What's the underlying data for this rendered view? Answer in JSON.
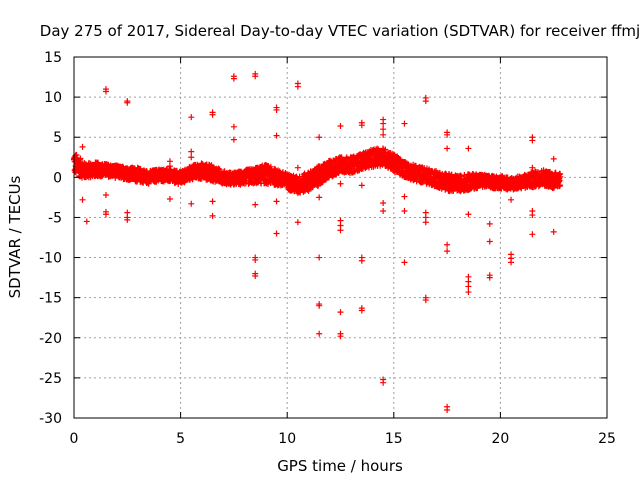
{
  "chart_data": {
    "type": "scatter",
    "title": "Day 275 of 2017, Sidereal Day-to-day VTEC variation (SDTVAR) for receiver ffmj",
    "xlabel": "GPS time / hours",
    "ylabel": "SDTVAR / TECUs",
    "xlim": [
      0,
      25
    ],
    "ylim": [
      -30,
      15
    ],
    "xticks": [
      0,
      5,
      10,
      15,
      20,
      25
    ],
    "yticks": [
      -30,
      -25,
      -20,
      -15,
      -10,
      -5,
      0,
      5,
      10,
      15
    ],
    "grid": true,
    "marker": "+",
    "series": [
      {
        "name": "SDTVAR",
        "color": "#ff0000",
        "band": {
          "x": [
            0.0,
            0.5,
            1.0,
            1.5,
            2.0,
            2.5,
            3.0,
            3.5,
            4.0,
            4.5,
            5.0,
            5.5,
            6.0,
            6.5,
            7.0,
            7.5,
            8.0,
            8.5,
            9.0,
            9.5,
            10.0,
            10.5,
            11.0,
            11.5,
            12.0,
            12.5,
            13.0,
            13.5,
            14.0,
            14.5,
            15.0,
            15.5,
            16.0,
            16.5,
            17.0,
            17.5,
            18.0,
            18.5,
            19.0,
            19.5,
            20.0,
            20.5,
            21.0,
            21.5,
            22.0,
            22.5,
            22.8
          ],
          "center": [
            1.8,
            0.8,
            1.0,
            0.9,
            0.7,
            0.5,
            0.3,
            0.0,
            0.3,
            0.2,
            -0.1,
            0.6,
            0.8,
            0.5,
            0.0,
            -0.2,
            0.0,
            0.2,
            0.4,
            0.0,
            -0.5,
            -1.0,
            -0.5,
            0.2,
            1.0,
            1.6,
            1.5,
            2.0,
            2.4,
            2.6,
            1.8,
            1.0,
            0.5,
            0.2,
            -0.2,
            -0.6,
            -0.8,
            -0.6,
            -0.4,
            -0.6,
            -0.6,
            -0.8,
            -0.6,
            -0.3,
            0.0,
            -0.4,
            -0.2
          ],
          "spread": [
            1.4,
            1.0,
            0.9,
            0.8,
            0.8,
            0.8,
            0.9,
            0.8,
            0.8,
            0.8,
            0.8,
            0.9,
            1.0,
            1.0,
            0.8,
            0.8,
            0.9,
            1.0,
            1.2,
            1.0,
            1.0,
            1.1,
            1.2,
            1.2,
            1.1,
            1.0,
            1.0,
            1.0,
            1.1,
            1.1,
            1.1,
            1.0,
            1.0,
            1.0,
            1.0,
            1.1,
            1.0,
            1.0,
            0.9,
            0.8,
            0.8,
            0.8,
            0.8,
            1.0,
            1.0,
            1.0,
            0.9
          ]
        },
        "points": [
          [
            0.4,
            3.8
          ],
          [
            0.4,
            -2.8
          ],
          [
            0.6,
            -5.5
          ],
          [
            1.5,
            11.0
          ],
          [
            1.5,
            10.7
          ],
          [
            1.5,
            -2.2
          ],
          [
            1.5,
            -4.6
          ],
          [
            1.5,
            -4.3
          ],
          [
            2.5,
            9.5
          ],
          [
            2.5,
            9.3
          ],
          [
            2.5,
            -4.4
          ],
          [
            2.5,
            -5.3
          ],
          [
            2.5,
            -5.0
          ],
          [
            4.5,
            2.0
          ],
          [
            4.5,
            1.4
          ],
          [
            4.5,
            -2.7
          ],
          [
            5.5,
            7.5
          ],
          [
            5.5,
            3.2
          ],
          [
            5.5,
            2.5
          ],
          [
            5.5,
            -3.3
          ],
          [
            6.5,
            8.1
          ],
          [
            6.5,
            7.8
          ],
          [
            6.5,
            -3.0
          ],
          [
            6.5,
            -4.8
          ],
          [
            7.5,
            12.6
          ],
          [
            7.5,
            12.3
          ],
          [
            7.5,
            6.3
          ],
          [
            7.5,
            4.7
          ],
          [
            8.5,
            12.9
          ],
          [
            8.5,
            12.6
          ],
          [
            8.5,
            -3.4
          ],
          [
            8.5,
            -10.0
          ],
          [
            8.5,
            -10.3
          ],
          [
            8.5,
            -12.0
          ],
          [
            8.5,
            -12.3
          ],
          [
            9.5,
            8.7
          ],
          [
            9.5,
            8.4
          ],
          [
            9.5,
            5.2
          ],
          [
            9.5,
            -3.0
          ],
          [
            9.5,
            -7.0
          ],
          [
            10.5,
            11.7
          ],
          [
            10.5,
            11.3
          ],
          [
            10.5,
            1.2
          ],
          [
            10.5,
            -5.6
          ],
          [
            11.5,
            5.0
          ],
          [
            11.5,
            -2.5
          ],
          [
            11.5,
            -10.0
          ],
          [
            11.5,
            -15.8
          ],
          [
            11.5,
            -16.0
          ],
          [
            11.5,
            -19.5
          ],
          [
            12.5,
            6.4
          ],
          [
            12.5,
            -0.8
          ],
          [
            12.5,
            -5.4
          ],
          [
            12.5,
            -6.0
          ],
          [
            12.5,
            -6.6
          ],
          [
            12.5,
            -16.8
          ],
          [
            12.5,
            -19.5
          ],
          [
            12.5,
            -19.8
          ],
          [
            13.5,
            6.8
          ],
          [
            13.5,
            6.5
          ],
          [
            13.5,
            -1.0
          ],
          [
            13.5,
            -10.0
          ],
          [
            13.5,
            -10.4
          ],
          [
            13.5,
            -16.3
          ],
          [
            13.5,
            -16.6
          ],
          [
            14.5,
            7.2
          ],
          [
            14.5,
            6.7
          ],
          [
            14.5,
            6.0
          ],
          [
            14.5,
            5.3
          ],
          [
            14.5,
            -3.2
          ],
          [
            14.5,
            -4.2
          ],
          [
            14.5,
            -25.2
          ],
          [
            14.5,
            -25.6
          ],
          [
            15.5,
            6.7
          ],
          [
            15.5,
            -2.4
          ],
          [
            15.5,
            -4.2
          ],
          [
            15.5,
            -10.6
          ],
          [
            16.5,
            9.9
          ],
          [
            16.5,
            9.5
          ],
          [
            16.5,
            -4.4
          ],
          [
            16.5,
            -5.0
          ],
          [
            16.5,
            -5.6
          ],
          [
            16.5,
            -15.0
          ],
          [
            16.5,
            -15.3
          ],
          [
            17.5,
            5.6
          ],
          [
            17.5,
            5.3
          ],
          [
            17.5,
            3.6
          ],
          [
            17.5,
            -8.4
          ],
          [
            17.5,
            -9.2
          ],
          [
            17.5,
            -28.6
          ],
          [
            17.5,
            -29.0
          ],
          [
            18.5,
            3.6
          ],
          [
            18.5,
            -4.6
          ],
          [
            18.5,
            -12.4
          ],
          [
            18.5,
            -13.0
          ],
          [
            18.5,
            -13.6
          ],
          [
            18.5,
            -14.3
          ],
          [
            19.5,
            -5.8
          ],
          [
            19.5,
            -8.0
          ],
          [
            19.5,
            -12.2
          ],
          [
            19.5,
            -12.5
          ],
          [
            20.5,
            -2.8
          ],
          [
            20.5,
            -9.6
          ],
          [
            20.5,
            -10.1
          ],
          [
            20.5,
            -10.6
          ],
          [
            21.5,
            5.0
          ],
          [
            21.5,
            4.6
          ],
          [
            21.5,
            1.2
          ],
          [
            21.5,
            -4.2
          ],
          [
            21.5,
            -4.7
          ],
          [
            21.5,
            -7.1
          ],
          [
            22.5,
            2.3
          ],
          [
            22.5,
            -6.8
          ]
        ]
      }
    ]
  }
}
